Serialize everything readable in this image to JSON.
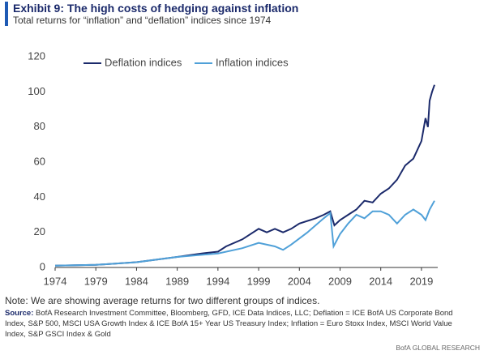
{
  "chart_data": {
    "type": "line",
    "title": "Exhibit 9: The high costs of hedging against inflation",
    "subtitle": "Total returns for “inflation” and “deflation” indices since 1974",
    "note": "Note: We are showing average returns for two different groups of indices.",
    "source_label": "Source:",
    "source": "BofA Research Investment Committee, Bloomberg, GFD, ICE Data Indices, LLC; Deflation = ICE BofA US Corporate Bond Index, S&P 500, MSCI USA Growth Index & ICE BofA 15+ Year US Treasury Index; Inflation = Euro Stoxx Index, MSCI World Value Index, S&P GSCI Index & Gold",
    "footer": "BofA GLOBAL RESEARCH",
    "series": [
      {
        "name": "Deflation indices",
        "color": "#1b2a6b",
        "x": [
          1974,
          1979,
          1984,
          1989,
          1992,
          1994,
          1995,
          1997,
          1999,
          2000,
          2001,
          2002,
          2003,
          2004,
          2006,
          2007,
          2007.8,
          2008.3,
          2009,
          2010,
          2011,
          2012,
          2013,
          2014,
          2015,
          2016,
          2017,
          2018,
          2019,
          2019.5,
          2019.8,
          2020,
          2020.3,
          2020.6
        ],
        "values": [
          1,
          1.5,
          3,
          6,
          8,
          9,
          12,
          16,
          22,
          20,
          22,
          20,
          22,
          25,
          28,
          30,
          32,
          24,
          27,
          30,
          33,
          38,
          37,
          42,
          45,
          50,
          58,
          62,
          72,
          85,
          80,
          95,
          100,
          104
        ]
      },
      {
        "name": "Inflation indices",
        "color": "#4fa0d8",
        "x": [
          1974,
          1979,
          1984,
          1989,
          1994,
          1997,
          1999,
          2001,
          2002,
          2003,
          2005,
          2007,
          2007.8,
          2008.2,
          2009,
          2010,
          2011,
          2012,
          2013,
          2014,
          2015,
          2016,
          2017,
          2018,
          2019,
          2019.5,
          2020,
          2020.6
        ],
        "values": [
          1,
          1.5,
          3,
          6,
          8,
          11,
          14,
          12,
          10,
          13,
          20,
          28,
          31,
          12,
          19,
          25,
          30,
          28,
          32,
          32,
          30,
          25,
          30,
          33,
          30,
          27,
          33,
          38
        ]
      }
    ],
    "xlim": [
      1974,
      2021
    ],
    "xticks": [
      1974,
      1979,
      1984,
      1989,
      1994,
      1999,
      2004,
      2009,
      2014,
      2019
    ],
    "ylim": [
      0,
      120
    ],
    "yticks": [
      0,
      20,
      40,
      60,
      80,
      100,
      120
    ],
    "grid": false
  }
}
